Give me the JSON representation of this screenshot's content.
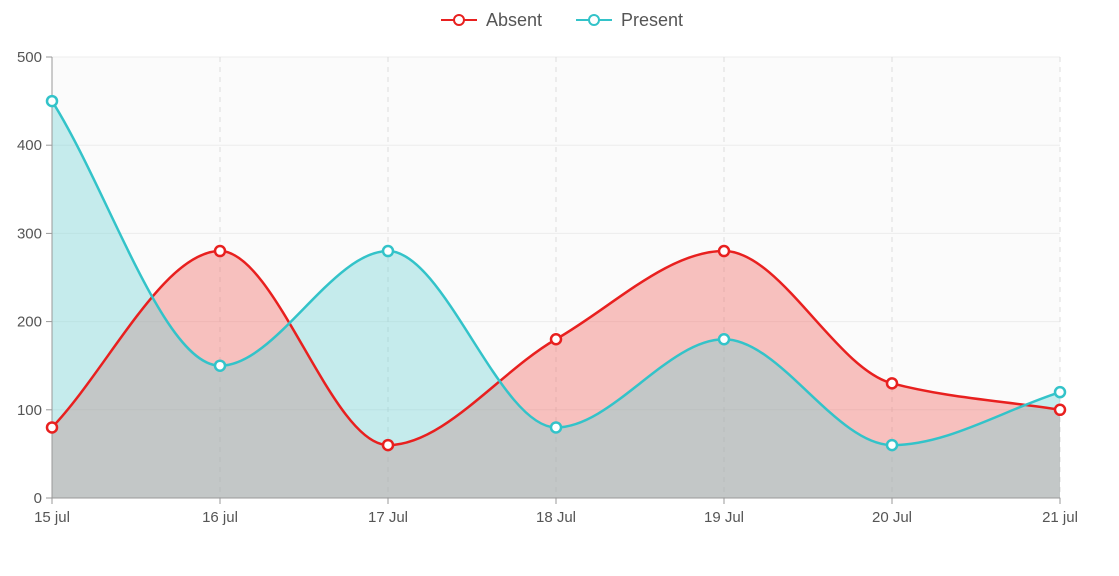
{
  "chart_data": {
    "type": "area",
    "categories": [
      "15 jul",
      "16 jul",
      "17 Jul",
      "18 Jul",
      "19 Jul",
      "20 Jul",
      "21 jul"
    ],
    "series": [
      {
        "name": "Absent",
        "values": [
          80,
          280,
          60,
          180,
          280,
          130,
          100
        ],
        "color": "#e8201f",
        "fill": "rgba(242, 120, 115, 0.45)"
      },
      {
        "name": "Present",
        "values": [
          450,
          150,
          280,
          80,
          180,
          60,
          120
        ],
        "color": "#33c3c9",
        "fill": "rgba(110, 210, 214, 0.38)"
      }
    ],
    "ylim": [
      0,
      500
    ],
    "yticks": [
      0,
      100,
      200,
      300,
      400,
      500
    ],
    "legend": "top-center",
    "grid": true,
    "colors": {
      "axis": "#999999",
      "grid": "#ececec",
      "text": "#555555",
      "plot_bg": "#fbfbfb"
    }
  }
}
